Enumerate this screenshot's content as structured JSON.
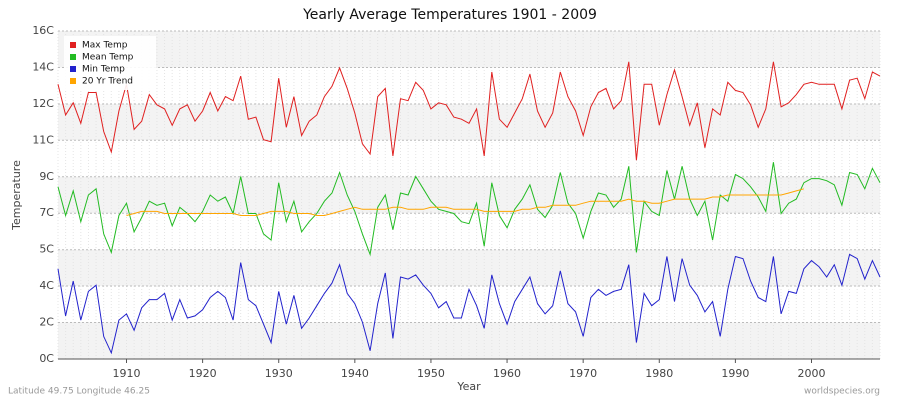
{
  "chart_data": {
    "type": "line",
    "title": "Yearly Average Temperatures 1901 - 2009",
    "x_label": "Year",
    "y_label": "Temperature",
    "annotations": [
      "Latitude 49.75 Longitude 46.25",
      "worldspecies.org"
    ],
    "x": [
      1901,
      1902,
      1903,
      1904,
      1905,
      1906,
      1907,
      1908,
      1909,
      1910,
      1911,
      1912,
      1913,
      1914,
      1915,
      1916,
      1917,
      1918,
      1919,
      1920,
      1921,
      1922,
      1923,
      1924,
      1925,
      1926,
      1927,
      1928,
      1929,
      1930,
      1931,
      1932,
      1933,
      1934,
      1935,
      1936,
      1937,
      1938,
      1939,
      1940,
      1941,
      1942,
      1943,
      1944,
      1945,
      1946,
      1947,
      1948,
      1949,
      1950,
      1951,
      1952,
      1953,
      1954,
      1955,
      1956,
      1957,
      1958,
      1959,
      1960,
      1961,
      1962,
      1963,
      1964,
      1965,
      1966,
      1967,
      1968,
      1969,
      1970,
      1971,
      1972,
      1973,
      1974,
      1975,
      1976,
      1977,
      1978,
      1979,
      1980,
      1981,
      1982,
      1983,
      1984,
      1985,
      1986,
      1987,
      1988,
      1989,
      1990,
      1991,
      1992,
      1993,
      1994,
      1995,
      1996,
      1997,
      1998,
      1999,
      2000,
      2001,
      2002,
      2003,
      2004,
      2005,
      2006,
      2007,
      2008,
      2009
    ],
    "xlim": [
      1901,
      2009
    ],
    "xticks": [
      1910,
      1920,
      1930,
      1940,
      1950,
      1960,
      1970,
      1980,
      1990,
      2000
    ],
    "ylim": [
      0,
      16
    ],
    "yticks": [
      {
        "value": 0,
        "label": "0C"
      },
      {
        "value": 1.78,
        "label": "2C"
      },
      {
        "value": 3.56,
        "label": "4C"
      },
      {
        "value": 5.33,
        "label": "5C"
      },
      {
        "value": 7.11,
        "label": "7C"
      },
      {
        "value": 8.89,
        "label": "9C"
      },
      {
        "value": 10.67,
        "label": "11C"
      },
      {
        "value": 12.44,
        "label": "12C"
      },
      {
        "value": 14.22,
        "label": "14C"
      },
      {
        "value": 16,
        "label": "16C"
      }
    ],
    "grid": true,
    "legend": "top-left",
    "series": [
      {
        "name": "Max Temp",
        "color": "#e02020",
        "values": [
          13.4,
          11.9,
          12.5,
          11.5,
          13.0,
          13.0,
          11.1,
          10.1,
          12.1,
          13.4,
          11.2,
          11.6,
          12.9,
          12.4,
          12.2,
          11.4,
          12.2,
          12.4,
          11.6,
          12.1,
          13.0,
          12.1,
          12.8,
          12.6,
          13.8,
          11.7,
          11.8,
          10.7,
          10.6,
          13.7,
          11.3,
          12.8,
          10.9,
          11.6,
          11.9,
          12.8,
          13.3,
          14.2,
          13.2,
          12.0,
          10.5,
          10.0,
          12.8,
          13.2,
          9.9,
          12.7,
          12.6,
          13.5,
          13.1,
          12.2,
          12.5,
          12.4,
          11.8,
          11.7,
          11.5,
          12.2,
          9.9,
          14.0,
          11.7,
          11.3,
          12.0,
          12.7,
          13.9,
          12.1,
          11.3,
          12.0,
          14.0,
          12.8,
          12.1,
          10.9,
          12.3,
          13.0,
          13.2,
          12.2,
          12.6,
          14.5,
          9.7,
          13.4,
          13.4,
          11.4,
          12.9,
          14.1,
          12.8,
          11.4,
          12.5,
          10.3,
          12.2,
          11.9,
          13.5,
          13.1,
          13.0,
          12.4,
          11.3,
          12.2,
          14.5,
          12.3,
          12.5,
          12.9,
          13.4,
          13.5,
          13.4,
          13.4,
          13.4,
          12.2,
          13.6,
          13.7,
          12.7,
          14.0,
          13.8
        ]
      },
      {
        "name": "Mean Temp",
        "color": "#22bb22",
        "values": [
          8.4,
          7.0,
          8.2,
          6.7,
          8.0,
          8.3,
          6.1,
          5.2,
          7.0,
          7.6,
          6.2,
          6.9,
          7.7,
          7.5,
          7.6,
          6.5,
          7.4,
          7.1,
          6.7,
          7.2,
          8.0,
          7.7,
          7.9,
          7.1,
          8.9,
          7.1,
          7.1,
          6.1,
          5.8,
          8.6,
          6.7,
          7.7,
          6.2,
          6.7,
          7.1,
          7.7,
          8.1,
          9.1,
          8.0,
          7.2,
          6.1,
          5.1,
          7.4,
          8.0,
          6.3,
          8.1,
          8.0,
          8.9,
          8.3,
          7.7,
          7.3,
          7.2,
          7.1,
          6.7,
          6.6,
          7.6,
          5.5,
          8.6,
          7.0,
          6.4,
          7.3,
          7.8,
          8.5,
          7.3,
          6.9,
          7.5,
          9.1,
          7.6,
          7.1,
          5.9,
          7.2,
          8.1,
          8.0,
          7.4,
          7.8,
          9.4,
          5.2,
          7.7,
          7.2,
          7.0,
          9.2,
          7.8,
          9.4,
          7.8,
          7.0,
          7.7,
          5.8,
          8.0,
          7.7,
          9.0,
          8.8,
          8.4,
          7.9,
          7.2,
          9.6,
          7.1,
          7.6,
          7.8,
          8.6,
          8.8,
          8.8,
          8.7,
          8.5,
          7.5,
          9.1,
          9.0,
          8.3,
          9.3,
          8.6
        ]
      },
      {
        "name": "Min Temp",
        "color": "#2222cc",
        "values": [
          4.4,
          2.1,
          3.8,
          1.9,
          3.3,
          3.6,
          1.1,
          0.3,
          1.9,
          2.2,
          1.4,
          2.5,
          2.9,
          2.9,
          3.2,
          1.9,
          2.9,
          2.0,
          2.1,
          2.4,
          3.0,
          3.3,
          3.0,
          1.9,
          4.7,
          2.9,
          2.6,
          1.7,
          0.8,
          3.3,
          1.7,
          3.1,
          1.5,
          2.0,
          2.6,
          3.2,
          3.7,
          4.6,
          3.2,
          2.7,
          1.8,
          0.4,
          2.7,
          4.2,
          1.0,
          4.0,
          3.9,
          4.1,
          3.6,
          3.2,
          2.5,
          2.8,
          2.0,
          2.0,
          3.4,
          2.6,
          1.5,
          4.1,
          2.7,
          1.7,
          2.8,
          3.4,
          4.0,
          2.7,
          2.2,
          2.6,
          4.3,
          2.7,
          2.3,
          1.1,
          3.0,
          3.4,
          3.1,
          3.3,
          3.4,
          4.6,
          0.8,
          3.2,
          2.6,
          2.9,
          5.0,
          2.8,
          4.9,
          3.6,
          3.1,
          2.3,
          2.8,
          1.1,
          3.4,
          5.0,
          4.9,
          3.8,
          3.0,
          2.8,
          5.0,
          2.2,
          3.3,
          3.2,
          4.4,
          4.8,
          4.5,
          4.0,
          4.6,
          3.6,
          5.1,
          4.9,
          3.9,
          4.8,
          4.0
        ]
      },
      {
        "name": "20 Yr Trend",
        "color": "#ffa500",
        "values": [
          null,
          null,
          null,
          null,
          null,
          null,
          null,
          null,
          null,
          7.0,
          7.1,
          7.2,
          7.2,
          7.2,
          7.1,
          7.1,
          7.1,
          7.1,
          7.1,
          7.1,
          7.1,
          7.1,
          7.1,
          7.1,
          7.0,
          7.0,
          7.0,
          7.1,
          7.2,
          7.2,
          7.2,
          7.1,
          7.1,
          7.1,
          7.0,
          7.0,
          7.1,
          7.2,
          7.3,
          7.4,
          7.3,
          7.3,
          7.3,
          7.3,
          7.4,
          7.4,
          7.3,
          7.3,
          7.3,
          7.4,
          7.4,
          7.4,
          7.3,
          7.3,
          7.3,
          7.3,
          7.2,
          7.2,
          7.2,
          7.2,
          7.2,
          7.3,
          7.3,
          7.4,
          7.4,
          7.5,
          7.5,
          7.5,
          7.5,
          7.6,
          7.7,
          7.7,
          7.7,
          7.7,
          7.7,
          7.8,
          7.7,
          7.7,
          7.6,
          7.6,
          7.7,
          7.8,
          7.8,
          7.8,
          7.8,
          7.8,
          7.9,
          7.9,
          8.0,
          8.0,
          8.0,
          8.0,
          8.0,
          8.0,
          8.0,
          8.0,
          8.1,
          8.2,
          8.3,
          null,
          null,
          null,
          null,
          null,
          null,
          null,
          null,
          null,
          null
        ]
      }
    ]
  }
}
